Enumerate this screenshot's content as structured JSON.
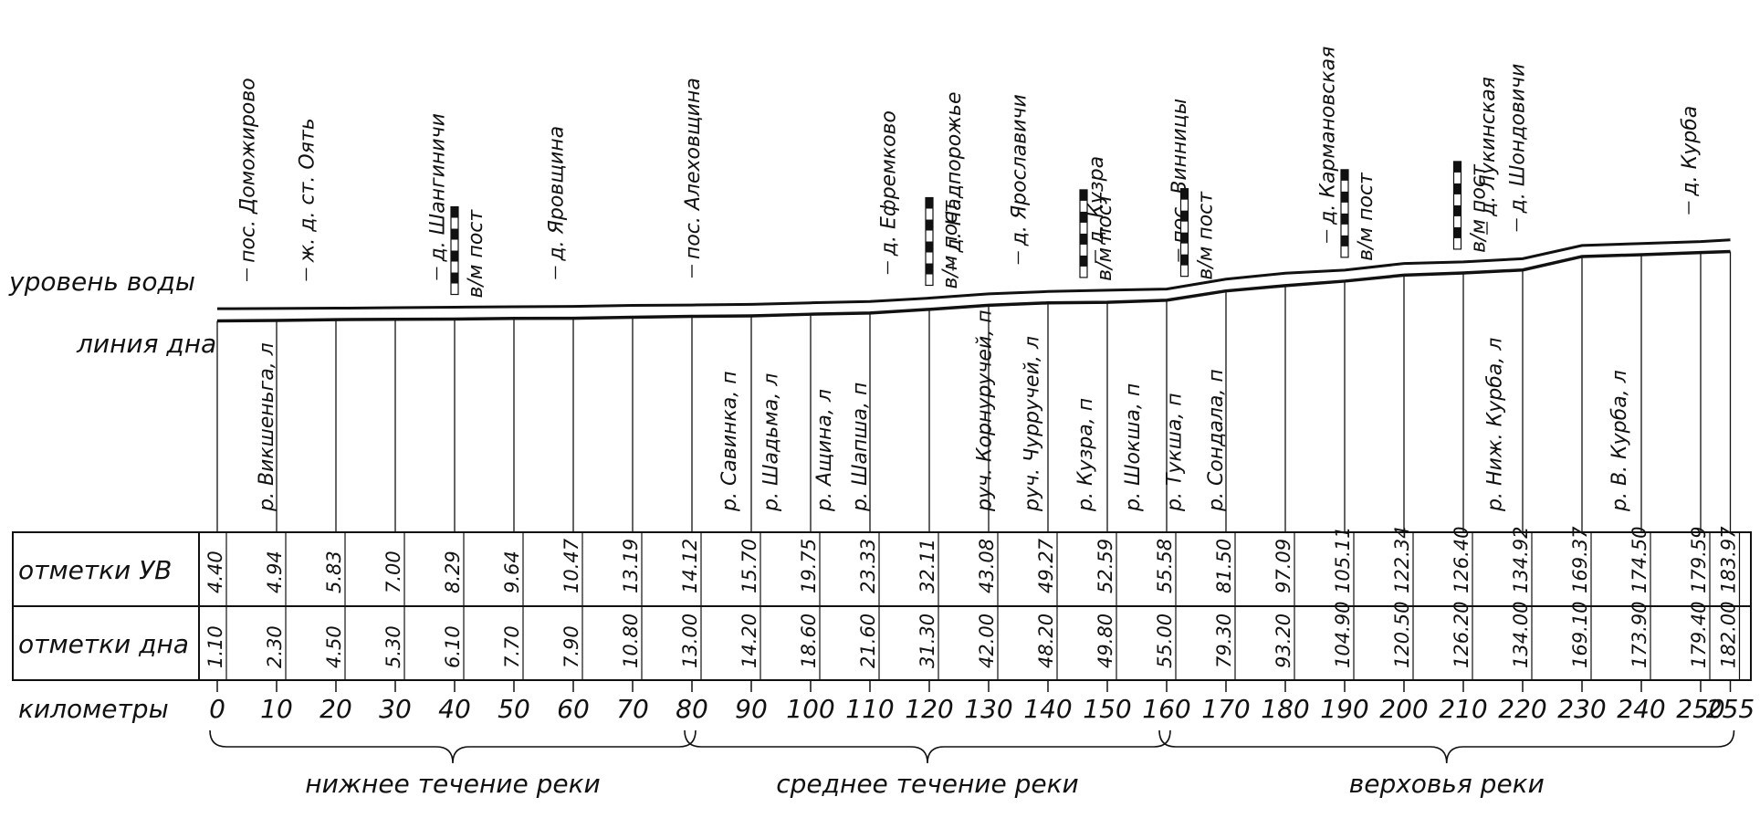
{
  "row_labels": {
    "water_level": "уровень воды",
    "bed_line": "линия дна",
    "water_marks": "отметки УВ",
    "bed_marks": "отметки дна",
    "km": "километры"
  },
  "reaches": [
    {
      "label": "нижнее течение реки",
      "from": 0,
      "to": 80
    },
    {
      "label": "среднее течение реки",
      "from": 80,
      "to": 160
    },
    {
      "label": "верховья реки",
      "from": 160,
      "to": 255
    }
  ],
  "chart_data": {
    "type": "line",
    "x": [
      0,
      10,
      20,
      30,
      40,
      50,
      60,
      70,
      80,
      90,
      100,
      110,
      120,
      130,
      140,
      150,
      160,
      170,
      180,
      190,
      200,
      210,
      220,
      230,
      240,
      250,
      255
    ],
    "x_labels": [
      "0",
      "10",
      "20",
      "30",
      "40",
      "50",
      "60",
      "70",
      "80",
      "90",
      "100",
      "110",
      "120",
      "130",
      "140",
      "150",
      "160",
      "170",
      "180",
      "190",
      "200",
      "210",
      "220",
      "230",
      "240",
      "250",
      "255"
    ],
    "series": [
      {
        "name": "уровень воды",
        "values": [
          4.4,
          4.94,
          5.83,
          7.0,
          8.29,
          9.64,
          10.47,
          13.19,
          14.12,
          15.7,
          19.75,
          23.33,
          32.11,
          43.08,
          49.27,
          52.59,
          55.58,
          81.5,
          97.09,
          105.11,
          122.34,
          126.4,
          134.92,
          169.37,
          174.5,
          179.59,
          183.97
        ]
      },
      {
        "name": "линия дна",
        "values": [
          1.1,
          2.3,
          4.5,
          5.3,
          6.1,
          7.7,
          7.9,
          10.8,
          13.0,
          14.2,
          18.6,
          21.6,
          31.3,
          42.0,
          48.2,
          49.8,
          55.0,
          79.3,
          93.2,
          104.9,
          120.5,
          126.2,
          134.0,
          169.1,
          173.9,
          179.4,
          182.0
        ]
      }
    ],
    "water_labels": [
      "4.40",
      "4.94",
      "5.83",
      "7.00",
      "8.29",
      "9.64",
      "10.47",
      "13.19",
      "14.12",
      "15.70",
      "19.75",
      "23.33",
      "32.11",
      "43.08",
      "49.27",
      "52.59",
      "55.58",
      "81.50",
      "97.09",
      "105.11",
      "122.34",
      "126.40",
      "134.92",
      "169.37",
      "174.50",
      "179.59",
      "183.97"
    ],
    "bed_labels": [
      "1.10",
      "2.30",
      "4.50",
      "5.30",
      "6.10",
      "7.70",
      "7.90",
      "10.80",
      "13.00",
      "14.20",
      "18.60",
      "21.60",
      "31.30",
      "42.00",
      "48.20",
      "49.80",
      "55.00",
      "79.30",
      "93.20",
      "104.90",
      "120.50",
      "126.20",
      "134.00",
      "169.10",
      "173.90",
      "179.40",
      "182.00"
    ],
    "xlim": [
      0,
      255
    ],
    "ylim": [
      0,
      190
    ]
  },
  "settlements": [
    {
      "km": 5,
      "label": "пос. Доможирово"
    },
    {
      "km": 15,
      "label": "ж. д. ст. Оять"
    },
    {
      "km": 37,
      "label": "д. Шангиничи"
    },
    {
      "km": 57,
      "label": "д. Яровщина"
    },
    {
      "km": 80,
      "label": "пос. Алеховщина"
    },
    {
      "km": 113,
      "label": "д. Ефремково"
    },
    {
      "km": 124,
      "label": "д. Надпорожье"
    },
    {
      "km": 135,
      "label": "д. Ярославичи"
    },
    {
      "km": 148,
      "label": "д. Кузра"
    },
    {
      "km": 162,
      "label": "пос. Винницы"
    },
    {
      "km": 187,
      "label": "д. Кармановская"
    },
    {
      "km": 214,
      "label": "д. Лукинская"
    },
    {
      "km": 219,
      "label": "д. Шондовичи"
    },
    {
      "km": 248,
      "label": "д. Курба"
    }
  ],
  "gauges": [
    {
      "km": 40,
      "label": "в/м пост"
    },
    {
      "km": 120,
      "label": "в/м пост"
    },
    {
      "km": 146,
      "label": "в/м пост"
    },
    {
      "km": 163,
      "label": "в/м пост"
    },
    {
      "km": 190,
      "label": "в/м пост"
    },
    {
      "km": 209,
      "label": "в/м пост"
    }
  ],
  "tributaries": [
    {
      "km": 10,
      "label": "р. Викшеньга, л"
    },
    {
      "km": 88,
      "label": "р. Савинка, п"
    },
    {
      "km": 95,
      "label": "р. Шадьма, л"
    },
    {
      "km": 104,
      "label": "р. Ащина, л"
    },
    {
      "km": 110,
      "label": "р. Шапша, п"
    },
    {
      "km": 131,
      "label": "руч. Корнуручей, п"
    },
    {
      "km": 139,
      "label": "руч. Чурручей, л"
    },
    {
      "km": 148,
      "label": "р. Кузра, п"
    },
    {
      "km": 156,
      "label": "р. Шокша, п"
    },
    {
      "km": 163,
      "label": "р. Тукша, п"
    },
    {
      "km": 170,
      "label": "р. Сондала, п"
    },
    {
      "km": 217,
      "label": "р. Ниж. Курба, л"
    },
    {
      "km": 238,
      "label": "р. В. Курба, л"
    }
  ]
}
